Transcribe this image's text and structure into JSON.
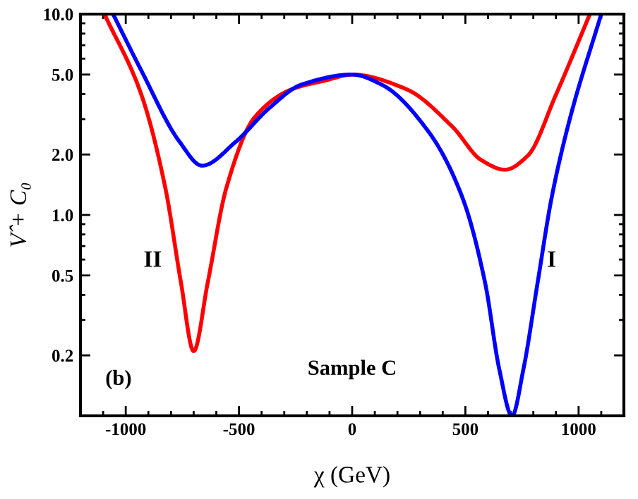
{
  "chart_data": {
    "type": "line",
    "xlabel": "χ (GeV)",
    "ylabel": "V̂ + C₀",
    "log": "y",
    "xlim": [
      -1200,
      1200
    ],
    "xticks": [
      -1000,
      -500,
      0,
      500,
      1000
    ],
    "ylim": [
      0.1,
      10
    ],
    "yticks": [
      {
        "value": 0.2,
        "label": "0.2"
      },
      {
        "value": 0.5,
        "label": "0.5"
      },
      {
        "value": 1,
        "label": "1.0"
      },
      {
        "value": 2,
        "label": "2.0"
      },
      {
        "value": 5,
        "label": "5.0"
      },
      {
        "value": 10,
        "label": "10.0"
      }
    ],
    "grid": false,
    "legend": false,
    "line_style": "solid",
    "marker": "none",
    "series": [
      {
        "color": "#ff0000",
        "x": [
          -1094,
          -931,
          -825,
          -756,
          -700,
          -638,
          -556,
          -431,
          -263,
          -119,
          0,
          237,
          444,
          569,
          675,
          775,
          900,
          1050
        ],
        "values": [
          10,
          3.97,
          1.36,
          0.46,
          0.21,
          0.46,
          1.36,
          3.06,
          4.24,
          4.67,
          5.0,
          4.24,
          2.74,
          1.88,
          1.68,
          1.97,
          3.97,
          10
        ]
      },
      {
        "color": "#0000ff",
        "x": [
          -1056,
          -931,
          -763,
          -663,
          -513,
          -369,
          -225,
          0,
          131,
          337,
          487,
          587,
          650,
          706,
          756,
          819,
          881,
          963,
          1100
        ],
        "values": [
          10,
          5.23,
          2.32,
          1.76,
          2.32,
          3.38,
          4.45,
          5.0,
          4.45,
          2.6,
          1.22,
          0.46,
          0.17,
          0.1,
          0.17,
          0.46,
          1.22,
          3.06,
          10
        ]
      }
    ],
    "annotations": [
      "II",
      "I",
      "Sample C",
      "(b)"
    ]
  }
}
